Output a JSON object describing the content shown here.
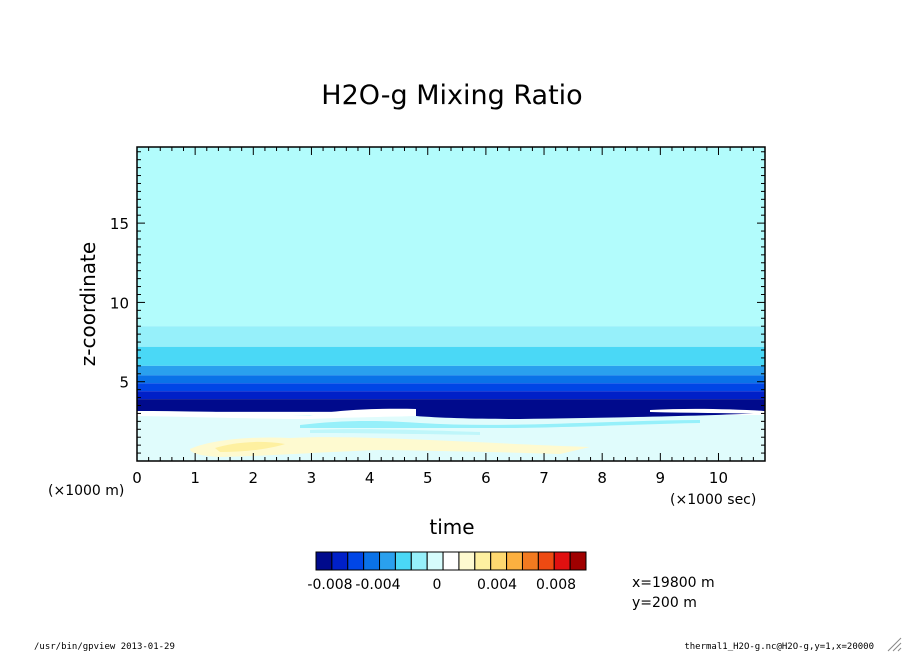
{
  "chart_data": {
    "type": "heatmap",
    "title": "H2O-g Mixing Ratio",
    "xlabel": "time",
    "ylabel": "z-coordinate",
    "x_unit": "(×1000 sec)",
    "y_unit": "(×1000 m)",
    "xlim": [
      0,
      10.8
    ],
    "ylim": [
      0,
      19.8
    ],
    "x_ticks": [
      0,
      1,
      2,
      3,
      4,
      5,
      6,
      7,
      8,
      9,
      10
    ],
    "y_ticks": [
      5,
      10,
      15
    ],
    "x_tick_labels": [
      "0",
      "1",
      "2",
      "3",
      "4",
      "5",
      "6",
      "7",
      "8",
      "9",
      "10"
    ],
    "y_tick_labels": [
      "5",
      "10",
      "15"
    ],
    "colorbar": {
      "colors": [
        "#000a8c",
        "#0020c8",
        "#0046e6",
        "#0a72e8",
        "#2aa0ee",
        "#4ad8f6",
        "#96f0fa",
        "#d6fcfc",
        "#ffffff",
        "#fefad0",
        "#fef0a0",
        "#fed870",
        "#fcb040",
        "#f27a20",
        "#ee4a12",
        "#e01010",
        "#a00000"
      ],
      "tick_labels": [
        "-0.008",
        "-0.004",
        "0",
        "0.004",
        "0.008"
      ]
    },
    "layers": [
      {
        "name": "upper",
        "z_range": [
          8.5,
          19.8
        ],
        "color": "#b2fcfc"
      },
      {
        "name": "band1",
        "z_range": [
          7.2,
          8.5
        ],
        "color": "#96f0fa"
      },
      {
        "name": "band2",
        "z_range": [
          6.0,
          7.2
        ],
        "color": "#4ad8f6"
      },
      {
        "name": "band3",
        "z_range": [
          5.4,
          6.0
        ],
        "color": "#2aa0ee"
      },
      {
        "name": "band4",
        "z_range": [
          4.9,
          5.4
        ],
        "color": "#0a72e8"
      },
      {
        "name": "band5",
        "z_range": [
          4.4,
          4.9
        ],
        "color": "#0046e6"
      },
      {
        "name": "band6",
        "z_range": [
          3.9,
          4.4
        ],
        "color": "#0020c8"
      },
      {
        "name": "band7",
        "z_range": [
          3.1,
          3.9
        ],
        "color": "#000a8c"
      }
    ],
    "annotations": [
      "x=19800 m",
      "y=200 m"
    ]
  },
  "footer": {
    "left": "/usr/bin/gpview  2013-01-29",
    "right": "thermal1_H2O-g.nc@H2O-g,y=1,x=20000"
  }
}
